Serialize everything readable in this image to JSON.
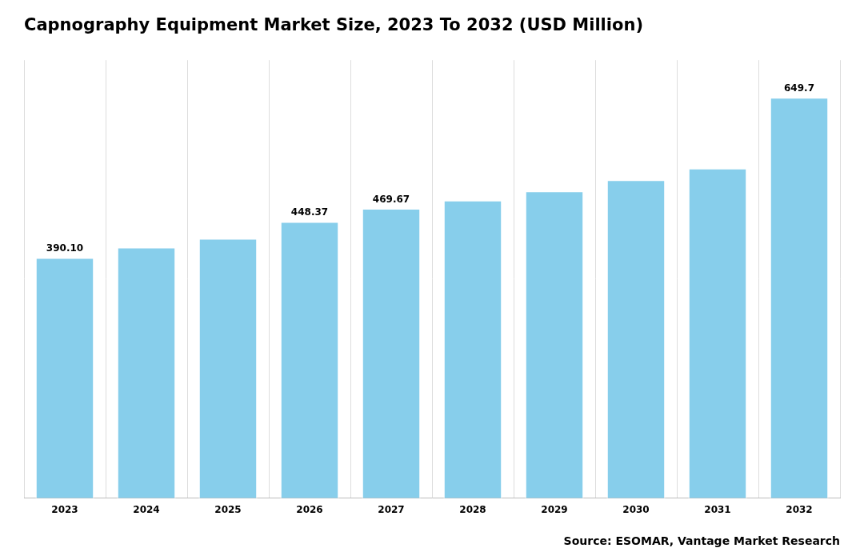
{
  "chart_data": {
    "type": "bar",
    "title": "Capnography Equipment Market Size, 2023 To 2032 (USD Million)",
    "categories": [
      "2023",
      "2024",
      "2025",
      "2026",
      "2027",
      "2028",
      "2029",
      "2030",
      "2031",
      "2032"
    ],
    "values": [
      390.1,
      407.0,
      421.0,
      448.37,
      469.67,
      483.0,
      498.0,
      516.0,
      535.0,
      649.7
    ],
    "value_labels": [
      "390.10",
      null,
      null,
      "448.37",
      "469.67",
      null,
      null,
      null,
      null,
      "649.7"
    ],
    "color": "#87CEEB",
    "ylim": [
      0,
      710
    ],
    "tick_labels": "x",
    "grid": true,
    "annotations": [
      "Source: ESOMAR, Vantage Market Research"
    ]
  }
}
